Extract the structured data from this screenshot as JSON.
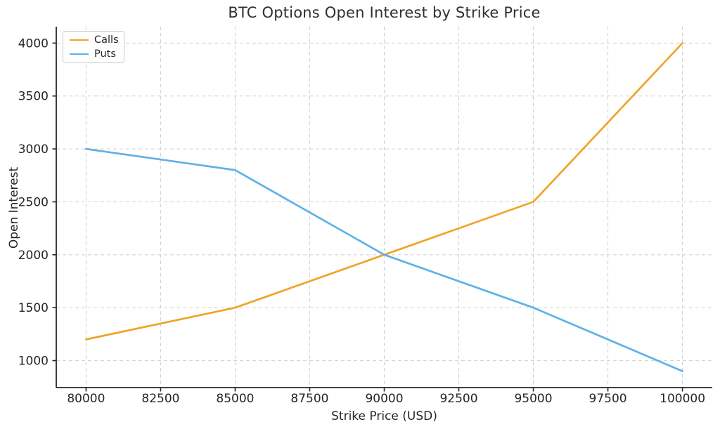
{
  "chart_data": {
    "type": "line",
    "title": "BTC Options Open Interest by Strike Price",
    "xlabel": "Strike Price (USD)",
    "ylabel": "Open Interest",
    "x": [
      80000,
      85000,
      90000,
      95000,
      100000
    ],
    "series": [
      {
        "name": "Calls",
        "color": "#EFA428",
        "values": [
          1200,
          1500,
          2000,
          2500,
          4000
        ]
      },
      {
        "name": "Puts",
        "color": "#5EB1E8",
        "values": [
          3000,
          2800,
          2000,
          1500,
          900
        ]
      }
    ],
    "x_ticks": [
      80000,
      82500,
      85000,
      87500,
      90000,
      92500,
      95000,
      97500,
      100000
    ],
    "y_ticks": [
      1000,
      1500,
      2000,
      2500,
      3000,
      3500,
      4000
    ],
    "xlim": [
      79000,
      101000
    ],
    "ylim": [
      745,
      4155
    ],
    "grid": true,
    "grid_color": "#cfcfcf",
    "spine_color": "#262626",
    "tick_label_color": "#262626",
    "legend_position": "upper left"
  }
}
